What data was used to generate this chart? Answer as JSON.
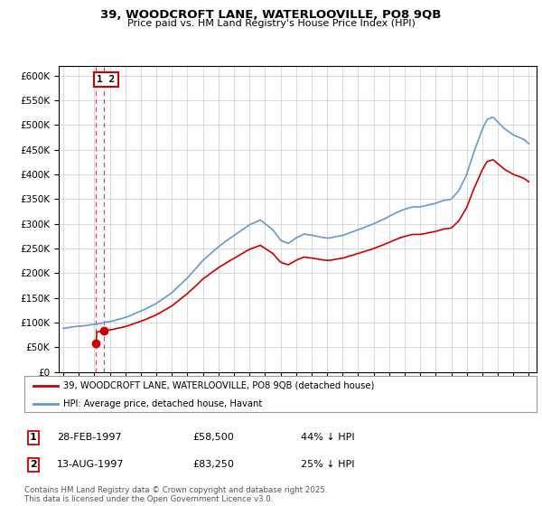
{
  "title1": "39, WOODCROFT LANE, WATERLOOVILLE, PO8 9QB",
  "title2": "Price paid vs. HM Land Registry's House Price Index (HPI)",
  "legend_line1": "39, WOODCROFT LANE, WATERLOOVILLE, PO8 9QB (detached house)",
  "legend_line2": "HPI: Average price, detached house, Havant",
  "transaction1_date": "28-FEB-1997",
  "transaction1_price": "£58,500",
  "transaction1_hpi": "44% ↓ HPI",
  "transaction1_date_num": 1997.12,
  "transaction1_price_val": 58500,
  "transaction2_date": "13-AUG-1997",
  "transaction2_price": "£83,250",
  "transaction2_hpi": "25% ↓ HPI",
  "transaction2_date_num": 1997.62,
  "transaction2_price_val": 83250,
  "footer": "Contains HM Land Registry data © Crown copyright and database right 2025.\nThis data is licensed under the Open Government Licence v3.0.",
  "red_color": "#cc0000",
  "blue_color": "#6699cc",
  "dashed_color": "#cc3333",
  "bg_color": "#ffffff",
  "grid_color": "#cccccc",
  "ylim_min": 0,
  "ylim_max": 620000,
  "xlim_min": 1994.7,
  "xlim_max": 2025.5
}
